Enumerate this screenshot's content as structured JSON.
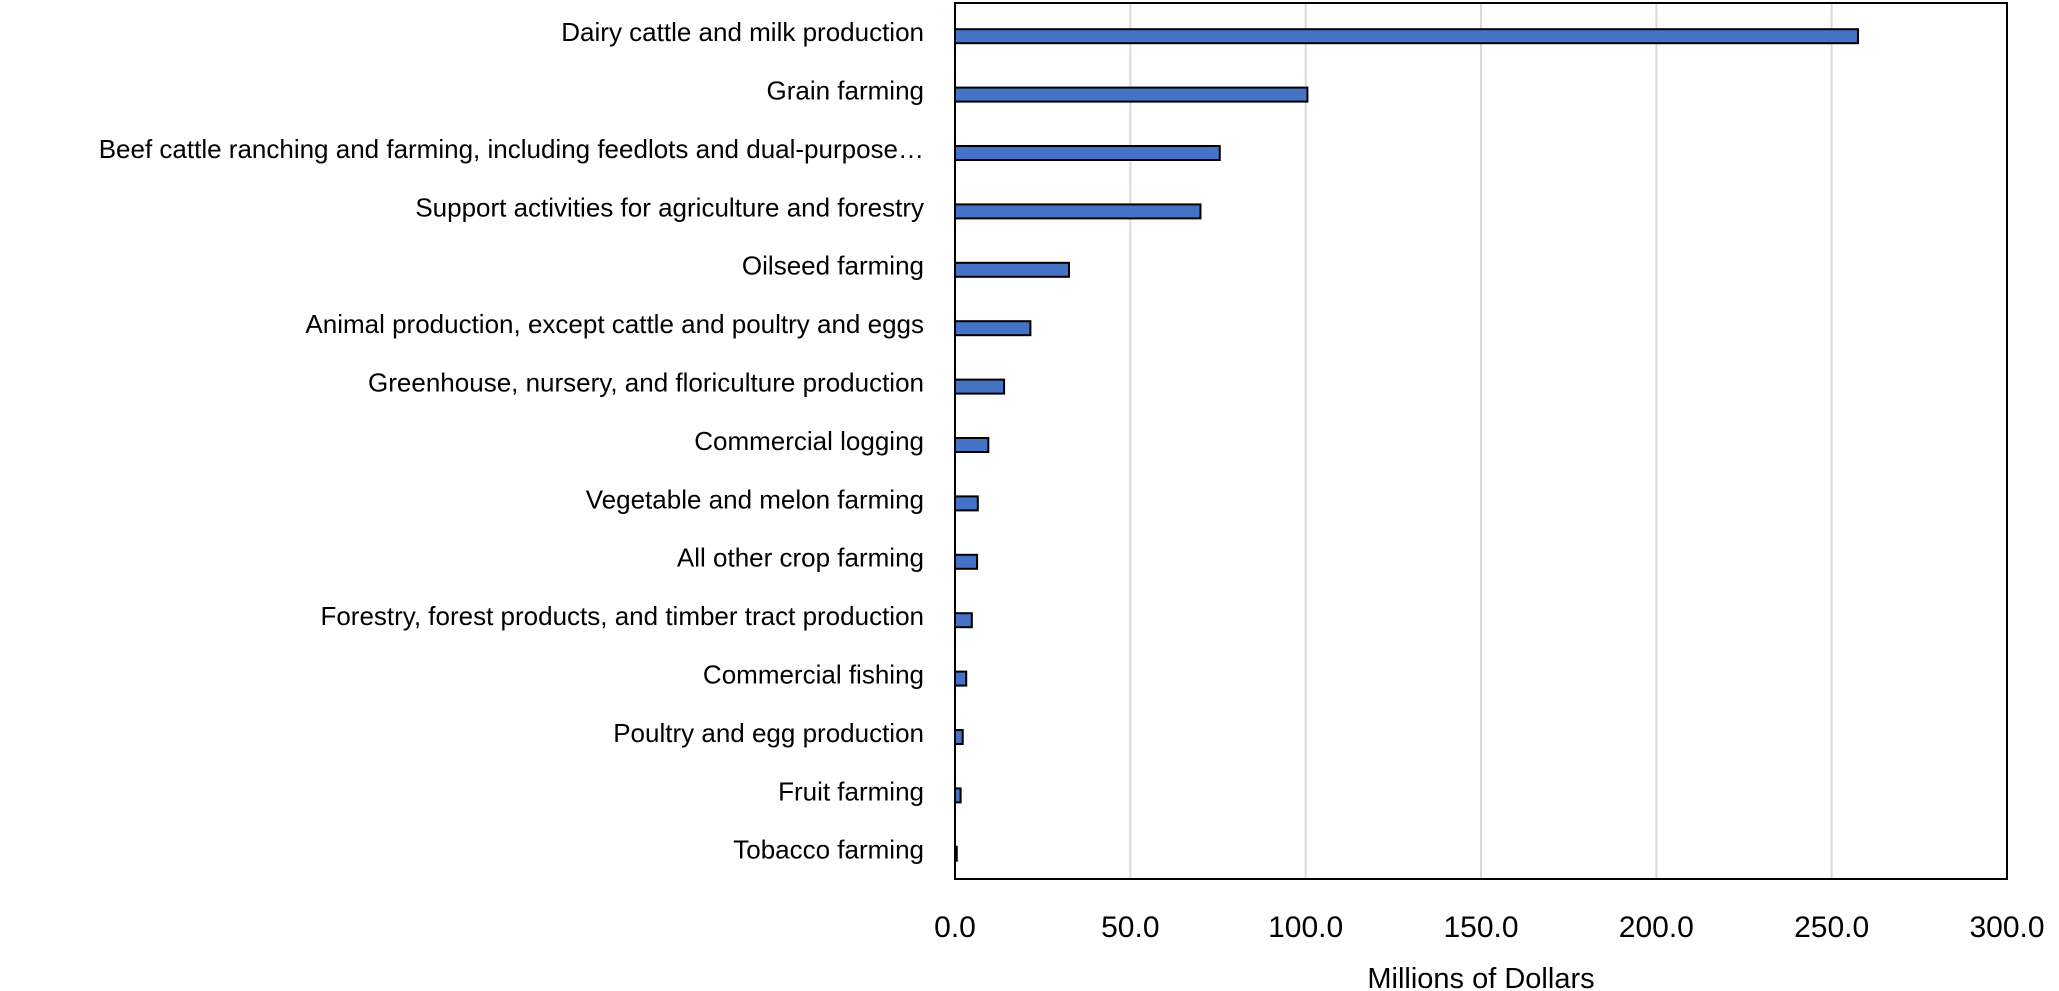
{
  "chart_data": {
    "type": "bar",
    "orientation": "horizontal",
    "title": "",
    "xlabel": "Millions of Dollars",
    "ylabel": "",
    "xlim": [
      0,
      300
    ],
    "x_ticks": [
      "0.0",
      "50.0",
      "100.0",
      "150.0",
      "200.0",
      "250.0",
      "300.0"
    ],
    "grid": "vertical",
    "bar_color": "#4472c4",
    "categories": [
      "Dairy cattle and milk production",
      "Grain farming",
      "Beef cattle ranching and farming, including feedlots and dual-purpose…",
      "Support activities for agriculture and forestry",
      "Oilseed farming",
      "Animal production, except cattle and poultry and eggs",
      "Greenhouse, nursery, and floriculture production",
      "Commercial logging",
      "Vegetable and melon farming",
      "All other crop farming",
      "Forestry, forest products, and timber tract production",
      "Commercial fishing",
      "Poultry and egg production",
      "Fruit farming",
      "Tobacco farming"
    ],
    "values": [
      257.5,
      100.5,
      75.5,
      70.0,
      32.5,
      21.5,
      14.0,
      9.5,
      6.5,
      6.3,
      4.8,
      3.2,
      2.2,
      1.6,
      0.5
    ]
  }
}
